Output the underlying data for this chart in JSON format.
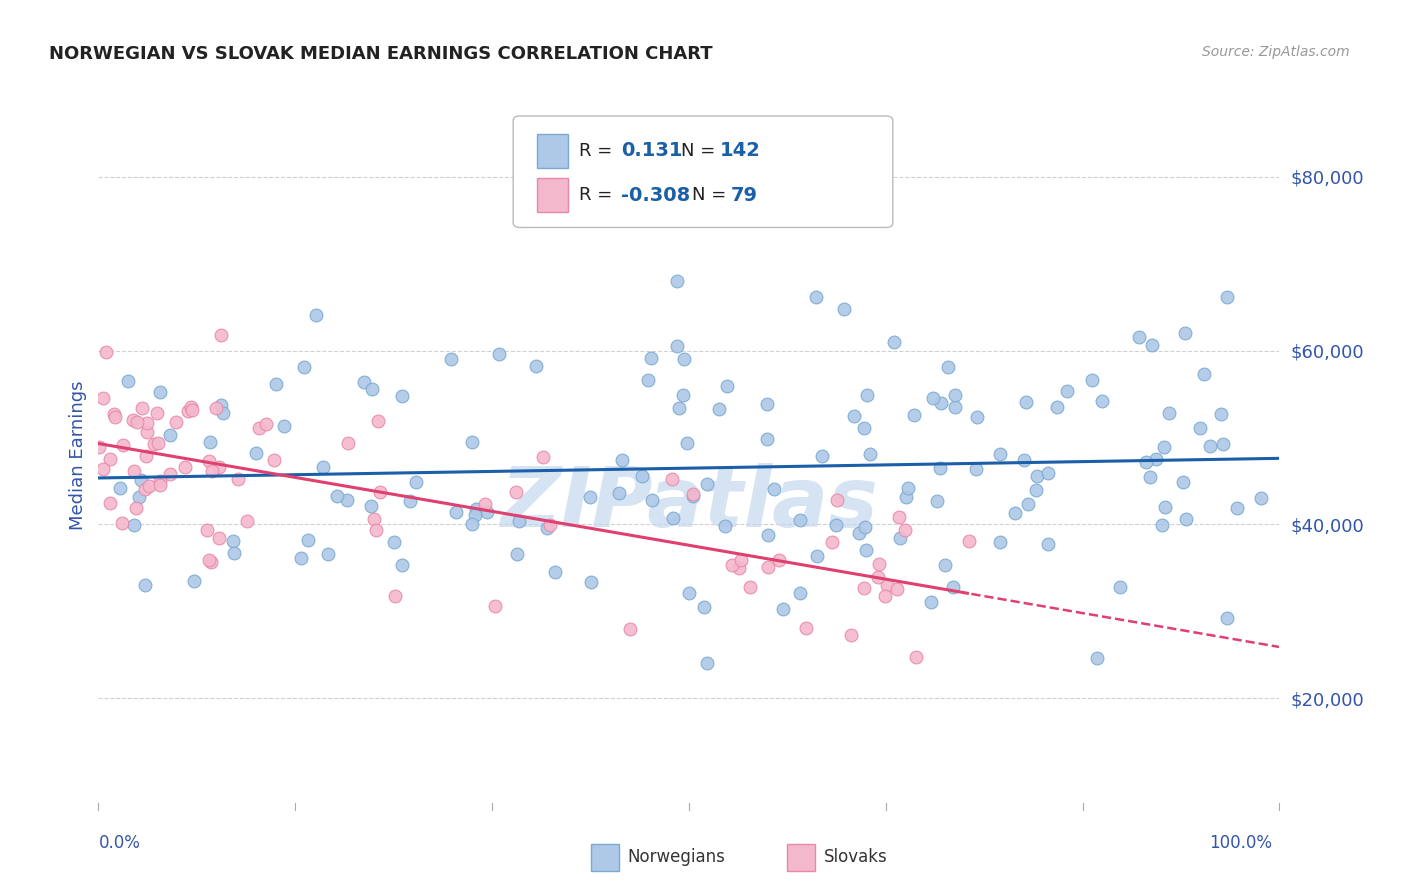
{
  "title": "NORWEGIAN VS SLOVAK MEDIAN EARNINGS CORRELATION CHART",
  "source": "Source: ZipAtlas.com",
  "ylabel": "Median Earnings",
  "yticks": [
    20000,
    40000,
    60000,
    80000
  ],
  "ytick_labels": [
    "$20,000",
    "$40,000",
    "$60,000",
    "$80,000"
  ],
  "xmin": 0.0,
  "xmax": 1.0,
  "ymin": 8000,
  "ymax": 88000,
  "norwegian_R": 0.131,
  "norwegian_N": 142,
  "slovak_R": -0.308,
  "slovak_N": 79,
  "blue_dot_face": "#aec8e8",
  "blue_dot_edge": "#7aaad0",
  "pink_dot_face": "#f4b8cc",
  "pink_dot_edge": "#e888a8",
  "line_blue": "#1a5fa8",
  "line_pink": "#e04070",
  "title_color": "#222222",
  "axis_label_color": "#3355aa",
  "tick_label_color": "#3355aa",
  "grid_color": "#cccccc",
  "background_color": "#ffffff",
  "watermark_text": "ZIPatlas",
  "watermark_color": "#c5d8ee",
  "legend_text_color": "#222222",
  "legend_value_color": "#1a5fa8"
}
